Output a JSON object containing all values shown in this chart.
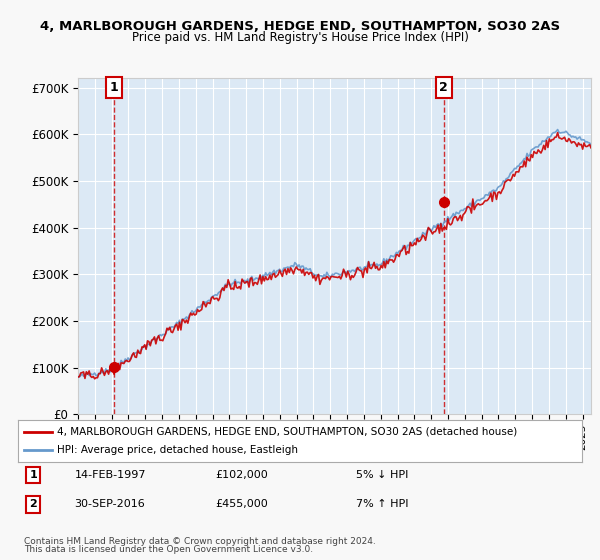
{
  "title1": "4, MARLBOROUGH GARDENS, HEDGE END, SOUTHAMPTON, SO30 2AS",
  "title2": "Price paid vs. HM Land Registry's House Price Index (HPI)",
  "ylabel_ticks": [
    "£0",
    "£100K",
    "£200K",
    "£300K",
    "£400K",
    "£500K",
    "£600K",
    "£700K"
  ],
  "ytick_vals": [
    0,
    100000,
    200000,
    300000,
    400000,
    500000,
    600000,
    700000
  ],
  "ylim": [
    0,
    720000
  ],
  "sale1_date": "14-FEB-1997",
  "sale1_price": 102000,
  "sale1_label": "1",
  "sale1_hpi_note": "5% ↓ HPI",
  "sale2_date": "30-SEP-2016",
  "sale2_price": 455000,
  "sale2_label": "2",
  "sale2_hpi_note": "7% ↑ HPI",
  "sale_color": "#cc0000",
  "hpi_color": "#6699cc",
  "legend_label1": "4, MARLBOROUGH GARDENS, HEDGE END, SOUTHAMPTON, SO30 2AS (detached house)",
  "legend_label2": "HPI: Average price, detached house, Eastleigh",
  "footnote1": "Contains HM Land Registry data © Crown copyright and database right 2024.",
  "footnote2": "This data is licensed under the Open Government Licence v3.0.",
  "background_color": "#dce9f5",
  "plot_bg": "#dce9f5",
  "grid_color": "#ffffff",
  "xlim_start": 1995.0,
  "xlim_end": 2025.5
}
